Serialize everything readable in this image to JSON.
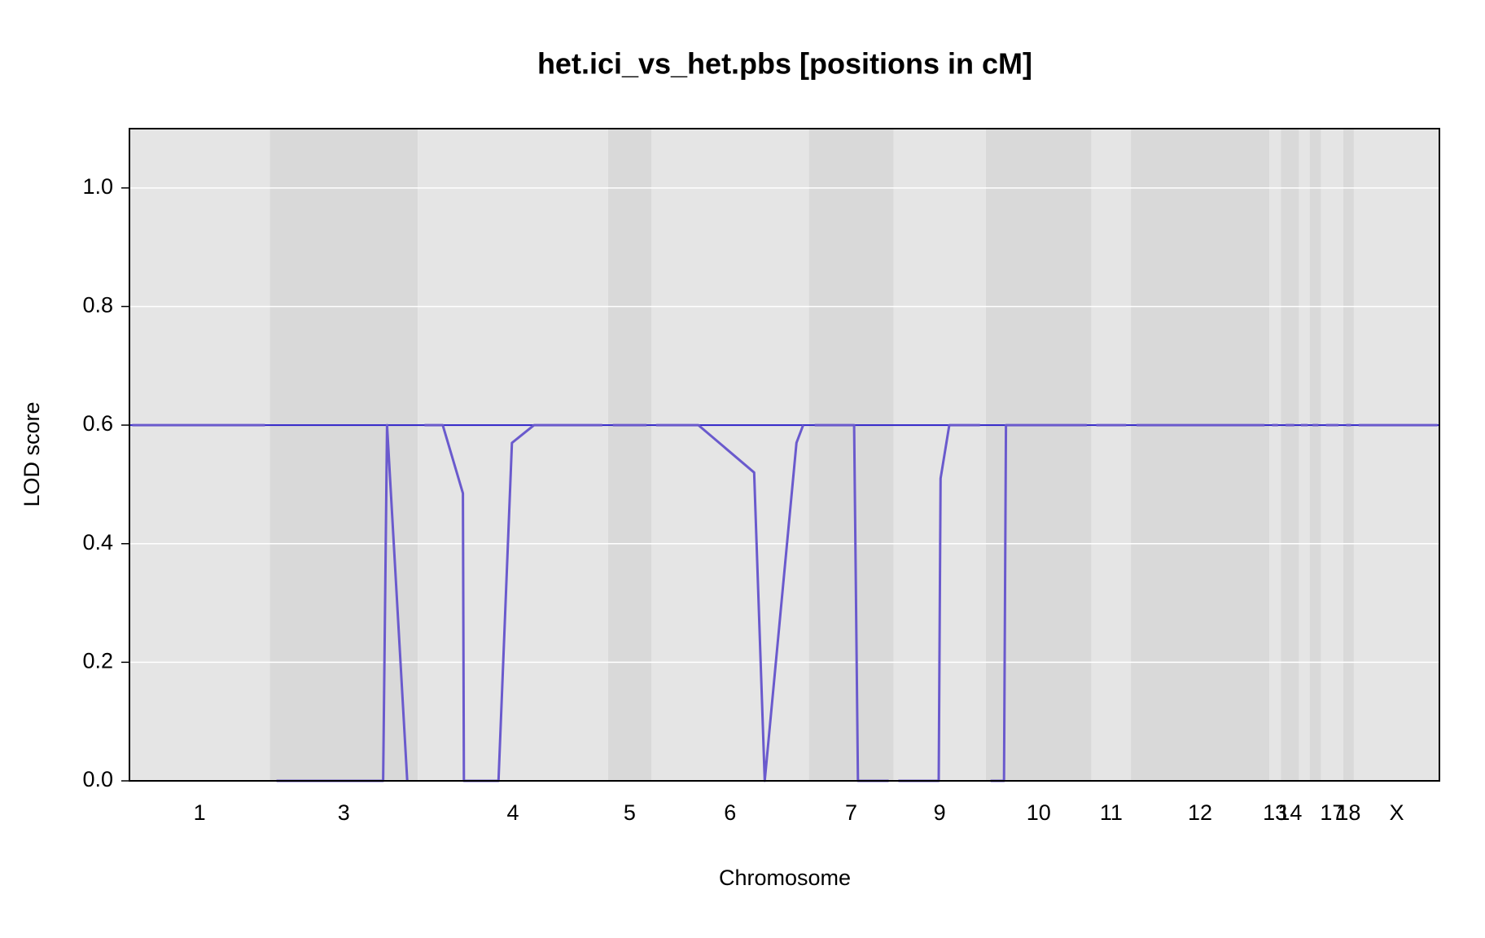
{
  "chart_data": {
    "type": "line",
    "title": "het.ici_vs_het.pbs [positions in cM]",
    "xlabel": "Chromosome",
    "ylabel": "LOD score",
    "xlim": [
      0,
      1363
    ],
    "ylim": [
      0,
      1.1
    ],
    "yticks": [
      {
        "value": 0,
        "label": "0.0"
      },
      0.2,
      0.4,
      0.6,
      0.8,
      {
        "value": 1,
        "label": "1.0"
      }
    ],
    "grid": true,
    "color": "#6a5acd",
    "band_colors": [
      "#e5e5e5",
      "#d9d9d9"
    ],
    "threshold": 0.6,
    "threshold_color": "#2f23c8",
    "chromosomes": [
      {
        "name": "1",
        "range": [
          0,
          146
        ],
        "x": [
          3,
          141
        ],
        "values": [
          0.6,
          0.6
        ]
      },
      {
        "name": "3",
        "range": [
          146,
          300
        ],
        "x": [
          153,
          264,
          268,
          289
        ],
        "values": [
          0,
          0,
          0.6,
          0
        ]
      },
      {
        "name": "4",
        "range": [
          300,
          498
        ],
        "x": [
          307,
          326,
          347,
          348,
          384,
          398,
          421,
          492
        ],
        "values": [
          0.6,
          0.6,
          0.485,
          0,
          0,
          0.57,
          0.6,
          0.6
        ]
      },
      {
        "name": "5",
        "range": [
          498,
          543
        ],
        "x": [
          503,
          538
        ],
        "values": [
          0.6,
          0.6
        ]
      },
      {
        "name": "6",
        "range": [
          543,
          707
        ],
        "x": [
          548,
          592,
          650,
          661,
          694,
          701
        ],
        "values": [
          0.6,
          0.6,
          0.52,
          0,
          0.57,
          0.6
        ]
      },
      {
        "name": "7",
        "range": [
          707,
          795
        ],
        "x": [
          713,
          754,
          758,
          790
        ],
        "values": [
          0.6,
          0.6,
          0,
          0
        ]
      },
      {
        "name": "9",
        "range": [
          795,
          891
        ],
        "x": [
          800,
          842,
          844,
          853,
          885
        ],
        "values": [
          0,
          0,
          0.51,
          0.6,
          0.6
        ]
      },
      {
        "name": "10",
        "range": [
          891,
          1001
        ],
        "x": [
          896,
          910,
          912,
          996
        ],
        "values": [
          0,
          0,
          0.6,
          0.6
        ]
      },
      {
        "name": "11",
        "range": [
          1001,
          1042
        ],
        "x": [
          1006,
          1037
        ],
        "values": [
          0.6,
          0.6
        ]
      },
      {
        "name": "12",
        "range": [
          1042,
          1186
        ],
        "x": [
          1048,
          1181
        ],
        "values": [
          0.6,
          0.6
        ]
      },
      {
        "name": "13",
        "range": [
          1186,
          1198
        ],
        "x": [
          1189,
          1195
        ],
        "values": [
          0.6,
          0.6
        ]
      },
      {
        "name": "14",
        "range": [
          1198,
          1217
        ],
        "x": [
          1203,
          1212
        ],
        "values": [
          0.6,
          0.6
        ]
      },
      {
        "name": null,
        "range": [
          1217,
          1228
        ],
        "x": [
          1219,
          1226
        ],
        "values": [
          0.6,
          0.6
        ]
      },
      {
        "name": null,
        "range": [
          1228,
          1240
        ],
        "x": [
          1231,
          1237
        ],
        "values": [
          0.6,
          0.6
        ]
      },
      {
        "name": "17",
        "range": [
          1240,
          1263
        ],
        "x": [
          1245,
          1258
        ],
        "values": [
          0.6,
          0.6
        ]
      },
      {
        "name": "18",
        "range": [
          1263,
          1274
        ],
        "x": [
          1266,
          1271
        ],
        "values": [
          0.6,
          0.6
        ]
      },
      {
        "name": "X",
        "range": [
          1274,
          1363
        ],
        "x": [
          1279,
          1361
        ],
        "values": [
          0.6,
          0.6
        ]
      }
    ]
  }
}
